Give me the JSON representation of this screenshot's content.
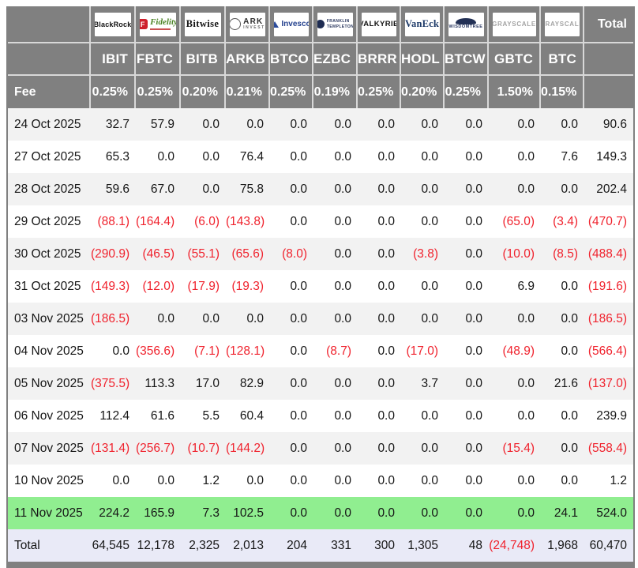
{
  "header": {
    "fee_label": "Fee",
    "total_label": "Total",
    "funds": [
      {
        "slug": "blackrock",
        "issuer": "BlackRock",
        "logo_text": "BlackRock",
        "ticker": "IBIT",
        "fee": "0.25%"
      },
      {
        "slug": "fidelity",
        "issuer": "Fidelity",
        "logo_prefix": "F",
        "logo_text": "Fidelity",
        "ticker": "FBTC",
        "fee": "0.25%"
      },
      {
        "slug": "bitwise",
        "issuer": "Bitwise",
        "logo_text": "Bitwise",
        "ticker": "BITB",
        "fee": "0.20%"
      },
      {
        "slug": "ark",
        "issuer": "ARK Invest",
        "logo_text": "ARK",
        "logo_sub": "INVEST",
        "ticker": "ARKB",
        "fee": "0.21%"
      },
      {
        "slug": "invesco",
        "issuer": "Invesco",
        "logo_text": "Invesco",
        "ticker": "BTCO",
        "fee": "0.25%"
      },
      {
        "slug": "franklin",
        "issuer": "Franklin Templeton",
        "logo_text": "FRANKLIN",
        "logo_sub": "TEMPLETON",
        "ticker": "EZBC",
        "fee": "0.19%"
      },
      {
        "slug": "valkyrie",
        "issuer": "Valkyrie",
        "logo_text": "VALKYRIE",
        "ticker": "BRRR",
        "fee": "0.25%"
      },
      {
        "slug": "vaneck",
        "issuer": "VanEck",
        "logo_text": "VanEck",
        "ticker": "HODL",
        "fee": "0.20%"
      },
      {
        "slug": "wisdomtree",
        "issuer": "WisdomTree",
        "logo_text": "WISDOMTREE",
        "ticker": "BTCW",
        "fee": "0.25%"
      },
      {
        "slug": "grayscale",
        "issuer": "Grayscale",
        "logo_text": "GRAYSCALE",
        "ticker": "GBTC",
        "fee": "1.50%"
      },
      {
        "slug": "grayscale2",
        "issuer": "Grayscale",
        "logo_text": "GRAYSCALE",
        "ticker": "BTC",
        "fee": "0.15%"
      }
    ]
  },
  "rows": [
    {
      "date": "24 Oct 2025",
      "values": [
        "32.7",
        "57.9",
        "0.0",
        "0.0",
        "0.0",
        "0.0",
        "0.0",
        "0.0",
        "0.0",
        "0.0",
        "0.0"
      ],
      "total": "90.6",
      "highlight": false
    },
    {
      "date": "27 Oct 2025",
      "values": [
        "65.3",
        "0.0",
        "0.0",
        "76.4",
        "0.0",
        "0.0",
        "0.0",
        "0.0",
        "0.0",
        "0.0",
        "7.6"
      ],
      "total": "149.3",
      "highlight": false
    },
    {
      "date": "28 Oct 2025",
      "values": [
        "59.6",
        "67.0",
        "0.0",
        "75.8",
        "0.0",
        "0.0",
        "0.0",
        "0.0",
        "0.0",
        "0.0",
        "0.0"
      ],
      "total": "202.4",
      "highlight": false
    },
    {
      "date": "29 Oct 2025",
      "values": [
        "(88.1)",
        "(164.4)",
        "(6.0)",
        "(143.8)",
        "0.0",
        "0.0",
        "0.0",
        "0.0",
        "0.0",
        "(65.0)",
        "(3.4)"
      ],
      "total": "(470.7)",
      "highlight": false
    },
    {
      "date": "30 Oct 2025",
      "values": [
        "(290.9)",
        "(46.5)",
        "(55.1)",
        "(65.6)",
        "(8.0)",
        "0.0",
        "0.0",
        "(3.8)",
        "0.0",
        "(10.0)",
        "(8.5)"
      ],
      "total": "(488.4)",
      "highlight": false
    },
    {
      "date": "31 Oct 2025",
      "values": [
        "(149.3)",
        "(12.0)",
        "(17.9)",
        "(19.3)",
        "0.0",
        "0.0",
        "0.0",
        "0.0",
        "0.0",
        "6.9",
        "0.0"
      ],
      "total": "(191.6)",
      "highlight": false
    },
    {
      "date": "03 Nov 2025",
      "values": [
        "(186.5)",
        "0.0",
        "0.0",
        "0.0",
        "0.0",
        "0.0",
        "0.0",
        "0.0",
        "0.0",
        "0.0",
        "0.0"
      ],
      "total": "(186.5)",
      "highlight": false
    },
    {
      "date": "04 Nov 2025",
      "values": [
        "0.0",
        "(356.6)",
        "(7.1)",
        "(128.1)",
        "0.0",
        "(8.7)",
        "0.0",
        "(17.0)",
        "0.0",
        "(48.9)",
        "0.0"
      ],
      "total": "(566.4)",
      "highlight": false
    },
    {
      "date": "05 Nov 2025",
      "values": [
        "(375.5)",
        "113.3",
        "17.0",
        "82.9",
        "0.0",
        "0.0",
        "0.0",
        "3.7",
        "0.0",
        "0.0",
        "21.6"
      ],
      "total": "(137.0)",
      "highlight": false
    },
    {
      "date": "06 Nov 2025",
      "values": [
        "112.4",
        "61.6",
        "5.5",
        "60.4",
        "0.0",
        "0.0",
        "0.0",
        "0.0",
        "0.0",
        "0.0",
        "0.0"
      ],
      "total": "239.9",
      "highlight": false
    },
    {
      "date": "07 Nov 2025",
      "values": [
        "(131.4)",
        "(256.7)",
        "(10.7)",
        "(144.2)",
        "0.0",
        "0.0",
        "0.0",
        "0.0",
        "0.0",
        "(15.4)",
        "0.0"
      ],
      "total": "(558.4)",
      "highlight": false
    },
    {
      "date": "10 Nov 2025",
      "values": [
        "0.0",
        "0.0",
        "1.2",
        "0.0",
        "0.0",
        "0.0",
        "0.0",
        "0.0",
        "0.0",
        "0.0",
        "0.0"
      ],
      "total": "1.2",
      "highlight": false
    },
    {
      "date": "11 Nov 2025",
      "values": [
        "224.2",
        "165.9",
        "7.3",
        "102.5",
        "0.0",
        "0.0",
        "0.0",
        "0.0",
        "0.0",
        "0.0",
        "24.1"
      ],
      "total": "524.0",
      "highlight": true
    }
  ],
  "total_row": {
    "label": "Total",
    "values": [
      "64,545",
      "12,178",
      "2,325",
      "2,013",
      "204",
      "331",
      "300",
      "1,305",
      "48",
      "(24,748)",
      "1,968"
    ],
    "total": "60,470"
  },
  "colors": {
    "header_bg": "#808080",
    "negative": "#f0232e",
    "highlight_row": "#90ee90",
    "total_row_bg": "#e9eaf7",
    "stripe": "#f2f2f2"
  },
  "chart_data": {
    "type": "table",
    "columns": [
      "IBIT",
      "FBTC",
      "BITB",
      "ARKB",
      "BTCO",
      "EZBC",
      "BRRR",
      "HODL",
      "BTCW",
      "GBTC",
      "BTC",
      "Total"
    ],
    "issuers": [
      "BlackRock",
      "Fidelity",
      "Bitwise",
      "ARK Invest",
      "Invesco",
      "Franklin Templeton",
      "Valkyrie",
      "VanEck",
      "WisdomTree",
      "Grayscale",
      "Grayscale"
    ],
    "fees_pct": [
      0.25,
      0.25,
      0.2,
      0.21,
      0.25,
      0.19,
      0.25,
      0.2,
      0.25,
      1.5,
      0.15
    ],
    "rows": [
      {
        "date": "24 Oct 2025",
        "values": [
          32.7,
          57.9,
          0.0,
          0.0,
          0.0,
          0.0,
          0.0,
          0.0,
          0.0,
          0.0,
          0.0,
          90.6
        ]
      },
      {
        "date": "27 Oct 2025",
        "values": [
          65.3,
          0.0,
          0.0,
          76.4,
          0.0,
          0.0,
          0.0,
          0.0,
          0.0,
          0.0,
          7.6,
          149.3
        ]
      },
      {
        "date": "28 Oct 2025",
        "values": [
          59.6,
          67.0,
          0.0,
          75.8,
          0.0,
          0.0,
          0.0,
          0.0,
          0.0,
          0.0,
          0.0,
          202.4
        ]
      },
      {
        "date": "29 Oct 2025",
        "values": [
          -88.1,
          -164.4,
          -6.0,
          -143.8,
          0.0,
          0.0,
          0.0,
          0.0,
          0.0,
          -65.0,
          -3.4,
          -470.7
        ]
      },
      {
        "date": "30 Oct 2025",
        "values": [
          -290.9,
          -46.5,
          -55.1,
          -65.6,
          -8.0,
          0.0,
          0.0,
          -3.8,
          0.0,
          -10.0,
          -8.5,
          -488.4
        ]
      },
      {
        "date": "31 Oct 2025",
        "values": [
          -149.3,
          -12.0,
          -17.9,
          -19.3,
          0.0,
          0.0,
          0.0,
          0.0,
          0.0,
          6.9,
          0.0,
          -191.6
        ]
      },
      {
        "date": "03 Nov 2025",
        "values": [
          -186.5,
          0.0,
          0.0,
          0.0,
          0.0,
          0.0,
          0.0,
          0.0,
          0.0,
          0.0,
          0.0,
          -186.5
        ]
      },
      {
        "date": "04 Nov 2025",
        "values": [
          0.0,
          -356.6,
          -7.1,
          -128.1,
          0.0,
          -8.7,
          0.0,
          -17.0,
          0.0,
          -48.9,
          0.0,
          -566.4
        ]
      },
      {
        "date": "05 Nov 2025",
        "values": [
          -375.5,
          113.3,
          17.0,
          82.9,
          0.0,
          0.0,
          0.0,
          3.7,
          0.0,
          0.0,
          21.6,
          -137.0
        ]
      },
      {
        "date": "06 Nov 2025",
        "values": [
          112.4,
          61.6,
          5.5,
          60.4,
          0.0,
          0.0,
          0.0,
          0.0,
          0.0,
          0.0,
          0.0,
          239.9
        ]
      },
      {
        "date": "07 Nov 2025",
        "values": [
          -131.4,
          -256.7,
          -10.7,
          -144.2,
          0.0,
          0.0,
          0.0,
          0.0,
          0.0,
          -15.4,
          0.0,
          -558.4
        ]
      },
      {
        "date": "10 Nov 2025",
        "values": [
          0.0,
          0.0,
          1.2,
          0.0,
          0.0,
          0.0,
          0.0,
          0.0,
          0.0,
          0.0,
          0.0,
          1.2
        ]
      },
      {
        "date": "11 Nov 2025",
        "values": [
          224.2,
          165.9,
          7.3,
          102.5,
          0.0,
          0.0,
          0.0,
          0.0,
          0.0,
          0.0,
          24.1,
          524.0
        ]
      }
    ],
    "totals": [
      64545,
      12178,
      2325,
      2013,
      204,
      331,
      300,
      1305,
      48,
      -24748,
      1968,
      60470
    ],
    "highlighted_row": "11 Nov 2025",
    "legend_position": "none",
    "grid": false
  }
}
